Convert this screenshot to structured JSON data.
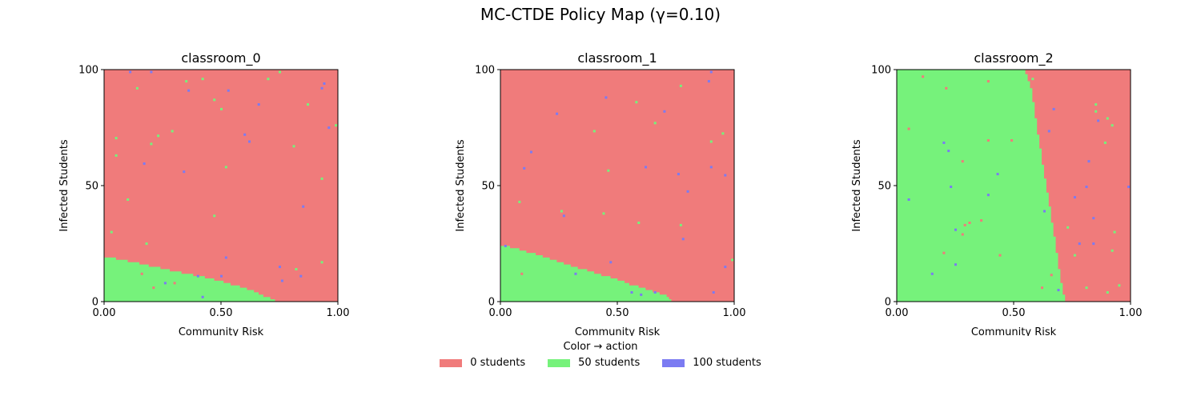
{
  "title": "MC-CTDE Policy Map (γ=0.10)",
  "colors": {
    "0": "#f07b7b",
    "50": "#76f27b",
    "100": "#7b7bf2"
  },
  "chart_data": [
    {
      "type": "heatmap",
      "title": "classroom_0",
      "xlabel": "Community Risk",
      "ylabel": "Infected Students",
      "xlim": [
        0,
        1
      ],
      "ylim": [
        0,
        100
      ],
      "xticks": [
        "0.00",
        "0.50",
        "1.00"
      ],
      "yticks": [
        "0",
        "50",
        "100"
      ],
      "default_action": 0,
      "region_action": 50,
      "boundary_below": [
        [
          0.0,
          19.5
        ],
        [
          0.15,
          16.5
        ],
        [
          0.3,
          13.0
        ],
        [
          0.45,
          10.0
        ],
        [
          0.6,
          6.0
        ],
        [
          0.72,
          1.0
        ],
        [
          0.73,
          0.0
        ]
      ],
      "speckles": [
        {
          "x": 0.05,
          "y": 70.5,
          "a": 50
        },
        {
          "x": 0.03,
          "y": 30,
          "a": 50
        },
        {
          "x": 0.1,
          "y": 44,
          "a": 50
        },
        {
          "x": 0.14,
          "y": 92,
          "a": 50
        },
        {
          "x": 0.2,
          "y": 68,
          "a": 50
        },
        {
          "x": 0.23,
          "y": 71.5,
          "a": 50
        },
        {
          "x": 0.29,
          "y": 73.5,
          "a": 50
        },
        {
          "x": 0.35,
          "y": 95,
          "a": 50
        },
        {
          "x": 0.42,
          "y": 96,
          "a": 50
        },
        {
          "x": 0.47,
          "y": 87,
          "a": 50
        },
        {
          "x": 0.5,
          "y": 83,
          "a": 50
        },
        {
          "x": 0.52,
          "y": 58,
          "a": 50
        },
        {
          "x": 0.47,
          "y": 37,
          "a": 50
        },
        {
          "x": 0.18,
          "y": 25,
          "a": 50
        },
        {
          "x": 0.05,
          "y": 63,
          "a": 50
        },
        {
          "x": 0.7,
          "y": 96,
          "a": 50
        },
        {
          "x": 0.75,
          "y": 99,
          "a": 50
        },
        {
          "x": 0.87,
          "y": 85,
          "a": 50
        },
        {
          "x": 0.81,
          "y": 67,
          "a": 50
        },
        {
          "x": 0.93,
          "y": 53,
          "a": 50
        },
        {
          "x": 0.82,
          "y": 14,
          "a": 50
        },
        {
          "x": 0.93,
          "y": 17,
          "a": 50
        },
        {
          "x": 0.99,
          "y": 76,
          "a": 50
        },
        {
          "x": 0.11,
          "y": 99,
          "a": 100
        },
        {
          "x": 0.2,
          "y": 99,
          "a": 100
        },
        {
          "x": 0.36,
          "y": 91,
          "a": 100
        },
        {
          "x": 0.53,
          "y": 91,
          "a": 100
        },
        {
          "x": 0.66,
          "y": 85,
          "a": 100
        },
        {
          "x": 0.6,
          "y": 72,
          "a": 100
        },
        {
          "x": 0.62,
          "y": 69,
          "a": 100
        },
        {
          "x": 0.34,
          "y": 56,
          "a": 100
        },
        {
          "x": 0.17,
          "y": 59.5,
          "a": 100
        },
        {
          "x": 0.52,
          "y": 19,
          "a": 100
        },
        {
          "x": 0.5,
          "y": 11,
          "a": 100
        },
        {
          "x": 0.4,
          "y": 11,
          "a": 100
        },
        {
          "x": 0.26,
          "y": 8,
          "a": 100
        },
        {
          "x": 0.42,
          "y": 2,
          "a": 100
        },
        {
          "x": 0.76,
          "y": 9,
          "a": 100
        },
        {
          "x": 0.75,
          "y": 15,
          "a": 100
        },
        {
          "x": 0.84,
          "y": 11,
          "a": 100
        },
        {
          "x": 0.85,
          "y": 41,
          "a": 100
        },
        {
          "x": 0.94,
          "y": 94,
          "a": 100
        },
        {
          "x": 0.93,
          "y": 92,
          "a": 100
        },
        {
          "x": 0.96,
          "y": 75,
          "a": 100
        },
        {
          "x": 0.16,
          "y": 12,
          "a": 0
        },
        {
          "x": 0.21,
          "y": 6,
          "a": 0
        },
        {
          "x": 0.3,
          "y": 8,
          "a": 0
        }
      ]
    },
    {
      "type": "heatmap",
      "title": "classroom_1",
      "xlabel": "Community Risk",
      "ylabel": "Infected Students",
      "xlim": [
        0,
        1
      ],
      "ylim": [
        0,
        100
      ],
      "xticks": [
        "0.00",
        "0.50",
        "1.00"
      ],
      "yticks": [
        "0",
        "50",
        "100"
      ],
      "default_action": 0,
      "region_action": 50,
      "boundary_below": [
        [
          0.0,
          24.5
        ],
        [
          0.15,
          20.5
        ],
        [
          0.3,
          15.5
        ],
        [
          0.45,
          11.0
        ],
        [
          0.6,
          6.0
        ],
        [
          0.7,
          3.0
        ],
        [
          0.74,
          0.0
        ]
      ],
      "speckles": [
        {
          "x": 0.4,
          "y": 73.5,
          "a": 50
        },
        {
          "x": 0.58,
          "y": 86,
          "a": 50
        },
        {
          "x": 0.66,
          "y": 77,
          "a": 50
        },
        {
          "x": 0.77,
          "y": 93,
          "a": 50
        },
        {
          "x": 0.9,
          "y": 69,
          "a": 50
        },
        {
          "x": 0.95,
          "y": 72.5,
          "a": 50
        },
        {
          "x": 0.46,
          "y": 56.5,
          "a": 50
        },
        {
          "x": 0.08,
          "y": 43,
          "a": 50
        },
        {
          "x": 0.26,
          "y": 39,
          "a": 50
        },
        {
          "x": 0.44,
          "y": 38,
          "a": 50
        },
        {
          "x": 0.59,
          "y": 34,
          "a": 50
        },
        {
          "x": 0.77,
          "y": 33,
          "a": 50
        },
        {
          "x": 0.99,
          "y": 18,
          "a": 50
        },
        {
          "x": 0.24,
          "y": 81,
          "a": 100
        },
        {
          "x": 0.45,
          "y": 88,
          "a": 100
        },
        {
          "x": 0.7,
          "y": 82,
          "a": 100
        },
        {
          "x": 0.89,
          "y": 95,
          "a": 100
        },
        {
          "x": 0.9,
          "y": 99,
          "a": 100
        },
        {
          "x": 0.13,
          "y": 64.5,
          "a": 100
        },
        {
          "x": 0.1,
          "y": 57.5,
          "a": 100
        },
        {
          "x": 0.62,
          "y": 58,
          "a": 100
        },
        {
          "x": 0.76,
          "y": 55,
          "a": 100
        },
        {
          "x": 0.8,
          "y": 47.5,
          "a": 100
        },
        {
          "x": 0.9,
          "y": 58,
          "a": 100
        },
        {
          "x": 0.96,
          "y": 54.5,
          "a": 100
        },
        {
          "x": 0.27,
          "y": 37,
          "a": 100
        },
        {
          "x": 0.78,
          "y": 27,
          "a": 100
        },
        {
          "x": 0.47,
          "y": 17,
          "a": 100
        },
        {
          "x": 0.32,
          "y": 12,
          "a": 100
        },
        {
          "x": 0.56,
          "y": 4,
          "a": 100
        },
        {
          "x": 0.6,
          "y": 3,
          "a": 100
        },
        {
          "x": 0.66,
          "y": 4,
          "a": 100
        },
        {
          "x": 0.91,
          "y": 4,
          "a": 100
        },
        {
          "x": 0.96,
          "y": 15,
          "a": 100
        },
        {
          "x": 0.02,
          "y": 24,
          "a": 100
        },
        {
          "x": 0.09,
          "y": 12,
          "a": 0
        }
      ]
    },
    {
      "type": "heatmap",
      "title": "classroom_2",
      "xlabel": "Community Risk",
      "ylabel": "Infected Students",
      "xlim": [
        0,
        1
      ],
      "ylim": [
        0,
        100
      ],
      "xticks": [
        "0.00",
        "0.50",
        "1.00"
      ],
      "yticks": [
        "0",
        "50",
        "100"
      ],
      "default_action": 0,
      "region_action": 50,
      "boundary_left": [
        [
          100,
          0.55
        ],
        [
          90,
          0.58
        ],
        [
          75,
          0.6
        ],
        [
          50,
          0.64
        ],
        [
          25,
          0.68
        ],
        [
          10,
          0.7
        ],
        [
          0,
          0.72
        ]
      ],
      "speckles": [
        {
          "x": 0.05,
          "y": 74.5,
          "a": 0
        },
        {
          "x": 0.11,
          "y": 97,
          "a": 0
        },
        {
          "x": 0.21,
          "y": 92,
          "a": 0
        },
        {
          "x": 0.39,
          "y": 95,
          "a": 0
        },
        {
          "x": 0.39,
          "y": 69.5,
          "a": 0
        },
        {
          "x": 0.49,
          "y": 69.5,
          "a": 0
        },
        {
          "x": 0.28,
          "y": 60.5,
          "a": 0
        },
        {
          "x": 0.29,
          "y": 33,
          "a": 0
        },
        {
          "x": 0.28,
          "y": 29,
          "a": 0
        },
        {
          "x": 0.31,
          "y": 34,
          "a": 0
        },
        {
          "x": 0.36,
          "y": 35,
          "a": 0
        },
        {
          "x": 0.2,
          "y": 21,
          "a": 0
        },
        {
          "x": 0.44,
          "y": 20,
          "a": 0
        },
        {
          "x": 0.62,
          "y": 6,
          "a": 0
        },
        {
          "x": 0.66,
          "y": 11.5,
          "a": 0
        },
        {
          "x": 0.77,
          "y": 26,
          "a": 0
        },
        {
          "x": 0.05,
          "y": 44,
          "a": 100
        },
        {
          "x": 0.2,
          "y": 68.5,
          "a": 100
        },
        {
          "x": 0.22,
          "y": 65,
          "a": 100
        },
        {
          "x": 0.23,
          "y": 49.5,
          "a": 100
        },
        {
          "x": 0.39,
          "y": 46,
          "a": 100
        },
        {
          "x": 0.43,
          "y": 55,
          "a": 100
        },
        {
          "x": 0.25,
          "y": 31,
          "a": 100
        },
        {
          "x": 0.25,
          "y": 16,
          "a": 100
        },
        {
          "x": 0.15,
          "y": 12,
          "a": 100
        },
        {
          "x": 0.63,
          "y": 39,
          "a": 100
        },
        {
          "x": 0.67,
          "y": 83,
          "a": 100
        },
        {
          "x": 0.65,
          "y": 73.5,
          "a": 100
        },
        {
          "x": 0.78,
          "y": 25,
          "a": 100
        },
        {
          "x": 0.76,
          "y": 45,
          "a": 100
        },
        {
          "x": 0.81,
          "y": 49.5,
          "a": 100
        },
        {
          "x": 0.82,
          "y": 60.5,
          "a": 100
        },
        {
          "x": 0.86,
          "y": 78,
          "a": 100
        },
        {
          "x": 0.84,
          "y": 36,
          "a": 100
        },
        {
          "x": 0.84,
          "y": 25,
          "a": 100
        },
        {
          "x": 0.69,
          "y": 5,
          "a": 100
        },
        {
          "x": 0.99,
          "y": 49.5,
          "a": 100
        },
        {
          "x": 0.58,
          "y": 96,
          "a": 50
        },
        {
          "x": 0.85,
          "y": 85,
          "a": 50
        },
        {
          "x": 0.85,
          "y": 82,
          "a": 50
        },
        {
          "x": 0.9,
          "y": 79,
          "a": 50
        },
        {
          "x": 0.92,
          "y": 76,
          "a": 50
        },
        {
          "x": 0.89,
          "y": 68.5,
          "a": 50
        },
        {
          "x": 0.73,
          "y": 32,
          "a": 50
        },
        {
          "x": 0.76,
          "y": 20,
          "a": 50
        },
        {
          "x": 0.81,
          "y": 6,
          "a": 50
        },
        {
          "x": 0.93,
          "y": 30,
          "a": 50
        },
        {
          "x": 0.92,
          "y": 22,
          "a": 50
        },
        {
          "x": 0.9,
          "y": 4,
          "a": 50
        },
        {
          "x": 0.95,
          "y": 7,
          "a": 50
        }
      ]
    }
  ],
  "legend": {
    "title": "Color → action",
    "items": [
      {
        "label": "0 students",
        "action": "0"
      },
      {
        "label": "50 students",
        "action": "50"
      },
      {
        "label": "100 students",
        "action": "100"
      }
    ]
  }
}
